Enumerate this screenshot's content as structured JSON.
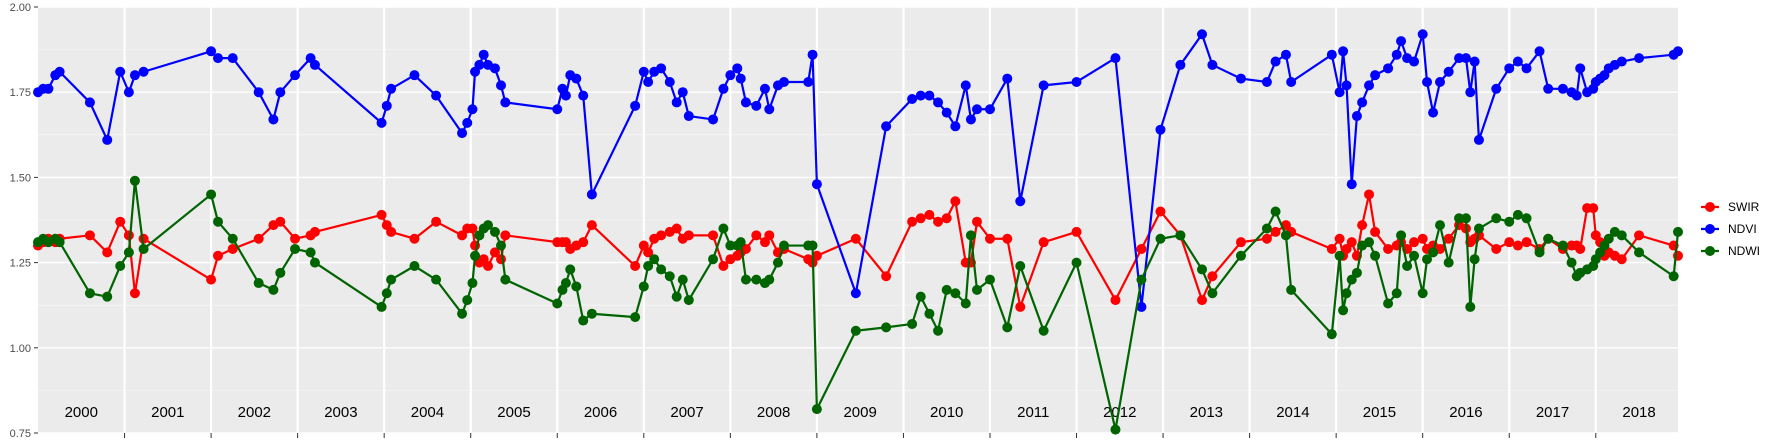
{
  "chart_data": {
    "type": "line",
    "title": "",
    "xlabel": "",
    "ylabel": "",
    "ylim": [
      0.75,
      2.0
    ],
    "xlim": [
      2000.0,
      2018.95
    ],
    "yticks": [
      0.75,
      1.0,
      1.25,
      1.5,
      1.75,
      2.0
    ],
    "ytick_labels": [
      "0.75",
      "1.00",
      "1.25",
      "1.50",
      "1.75",
      "2.00"
    ],
    "years": [
      "2000",
      "2001",
      "2002",
      "2003",
      "2004",
      "2005",
      "2006",
      "2007",
      "2008",
      "2009",
      "2010",
      "2011",
      "2012",
      "2013",
      "2014",
      "2015",
      "2016",
      "2017",
      "2018"
    ],
    "grid": true,
    "legend_position": "right",
    "series": [
      {
        "name": "SWIR",
        "color": "#ff0000",
        "x": [
          2000.0,
          2000.06,
          2000.12,
          2000.2,
          2000.25,
          2000.6,
          2000.8,
          2000.95,
          2001.05,
          2001.12,
          2001.22,
          2002.0,
          2002.08,
          2002.25,
          2002.55,
          2002.72,
          2002.8,
          2002.97,
          2003.15,
          2003.2,
          2003.97,
          2004.03,
          2004.08,
          2004.35,
          2004.6,
          2004.9,
          2004.96,
          2005.02,
          2005.05,
          2005.1,
          2005.15,
          2005.2,
          2005.28,
          2005.35,
          2005.4,
          2006.0,
          2006.06,
          2006.1,
          2006.15,
          2006.22,
          2006.3,
          2006.4,
          2006.9,
          2007.0,
          2007.05,
          2007.12,
          2007.2,
          2007.3,
          2007.38,
          2007.45,
          2007.52,
          2007.8,
          2007.92,
          2008.0,
          2008.08,
          2008.12,
          2008.18,
          2008.3,
          2008.4,
          2008.45,
          2008.55,
          2008.62,
          2008.9,
          2008.95,
          2009.0,
          2009.45,
          2009.8,
          2010.1,
          2010.2,
          2010.3,
          2010.4,
          2010.5,
          2010.6,
          2010.72,
          2010.78,
          2010.85,
          2011.0,
          2011.2,
          2011.35,
          2011.62,
          2012.0,
          2012.45,
          2012.75,
          2012.97,
          2013.2,
          2013.45,
          2013.57,
          2013.9,
          2014.2,
          2014.3,
          2014.42,
          2014.48,
          2014.95,
          2015.04,
          2015.08,
          2015.12,
          2015.18,
          2015.24,
          2015.3,
          2015.38,
          2015.45,
          2015.6,
          2015.7,
          2015.75,
          2015.82,
          2015.9,
          2016.0,
          2016.05,
          2016.12,
          2016.2,
          2016.3,
          2016.42,
          2016.5,
          2016.55,
          2016.6,
          2016.65,
          2016.85,
          2017.0,
          2017.1,
          2017.2,
          2017.35,
          2017.45,
          2017.62,
          2017.72,
          2017.78,
          2017.82,
          2017.9,
          2017.97,
          2018.0,
          2018.05,
          2018.1,
          2018.15,
          2018.22,
          2018.3,
          2018.5,
          2018.9,
          2018.95
        ],
        "values": [
          1.3,
          1.31,
          1.32,
          1.31,
          1.32,
          1.33,
          1.28,
          1.37,
          1.33,
          1.16,
          1.32,
          1.2,
          1.27,
          1.29,
          1.32,
          1.36,
          1.37,
          1.32,
          1.33,
          1.34,
          1.39,
          1.36,
          1.34,
          1.32,
          1.37,
          1.33,
          1.35,
          1.35,
          1.3,
          1.25,
          1.26,
          1.24,
          1.28,
          1.26,
          1.33,
          1.31,
          1.31,
          1.31,
          1.29,
          1.3,
          1.31,
          1.36,
          1.24,
          1.3,
          1.28,
          1.32,
          1.33,
          1.34,
          1.35,
          1.32,
          1.33,
          1.33,
          1.24,
          1.26,
          1.27,
          1.28,
          1.29,
          1.33,
          1.31,
          1.33,
          1.28,
          1.29,
          1.26,
          1.25,
          1.27,
          1.32,
          1.21,
          1.37,
          1.38,
          1.39,
          1.37,
          1.38,
          1.43,
          1.25,
          1.25,
          1.37,
          1.32,
          1.32,
          1.12,
          1.31,
          1.34,
          1.14,
          1.29,
          1.4,
          1.33,
          1.14,
          1.21,
          1.31,
          1.32,
          1.34,
          1.36,
          1.34,
          1.29,
          1.32,
          1.27,
          1.29,
          1.31,
          1.27,
          1.36,
          1.45,
          1.34,
          1.29,
          1.3,
          1.31,
          1.29,
          1.31,
          1.32,
          1.29,
          1.3,
          1.29,
          1.32,
          1.36,
          1.35,
          1.31,
          1.32,
          1.33,
          1.29,
          1.31,
          1.3,
          1.31,
          1.29,
          1.32,
          1.29,
          1.3,
          1.3,
          1.29,
          1.41,
          1.41,
          1.33,
          1.31,
          1.27,
          1.28,
          1.27,
          1.26,
          1.33,
          1.3,
          1.27
        ]
      },
      {
        "name": "NDVI",
        "color": "#0000ff",
        "x": [
          2000.0,
          2000.06,
          2000.12,
          2000.2,
          2000.25,
          2000.6,
          2000.8,
          2000.95,
          2001.05,
          2001.12,
          2001.22,
          2002.0,
          2002.08,
          2002.25,
          2002.55,
          2002.72,
          2002.8,
          2002.97,
          2003.15,
          2003.2,
          2003.97,
          2004.03,
          2004.08,
          2004.35,
          2004.6,
          2004.9,
          2004.96,
          2005.02,
          2005.05,
          2005.1,
          2005.15,
          2005.2,
          2005.28,
          2005.35,
          2005.4,
          2006.0,
          2006.06,
          2006.1,
          2006.15,
          2006.22,
          2006.3,
          2006.4,
          2006.9,
          2007.0,
          2007.05,
          2007.12,
          2007.2,
          2007.3,
          2007.38,
          2007.45,
          2007.52,
          2007.8,
          2007.92,
          2008.0,
          2008.08,
          2008.12,
          2008.18,
          2008.3,
          2008.4,
          2008.45,
          2008.55,
          2008.62,
          2008.9,
          2008.95,
          2009.0,
          2009.45,
          2009.8,
          2010.1,
          2010.2,
          2010.3,
          2010.4,
          2010.5,
          2010.6,
          2010.72,
          2010.78,
          2010.85,
          2011.0,
          2011.2,
          2011.35,
          2011.62,
          2012.0,
          2012.45,
          2012.75,
          2012.97,
          2013.2,
          2013.45,
          2013.57,
          2013.9,
          2014.2,
          2014.3,
          2014.42,
          2014.48,
          2014.95,
          2015.04,
          2015.08,
          2015.12,
          2015.18,
          2015.24,
          2015.3,
          2015.38,
          2015.45,
          2015.6,
          2015.7,
          2015.75,
          2015.82,
          2015.9,
          2016.0,
          2016.05,
          2016.12,
          2016.2,
          2016.3,
          2016.42,
          2016.5,
          2016.55,
          2016.6,
          2016.65,
          2016.85,
          2017.0,
          2017.1,
          2017.2,
          2017.35,
          2017.45,
          2017.62,
          2017.72,
          2017.78,
          2017.82,
          2017.9,
          2017.97,
          2018.0,
          2018.05,
          2018.1,
          2018.15,
          2018.22,
          2018.3,
          2018.5,
          2018.9,
          2018.95
        ],
        "values": [
          1.75,
          1.76,
          1.76,
          1.8,
          1.81,
          1.72,
          1.61,
          1.81,
          1.75,
          1.8,
          1.81,
          1.87,
          1.85,
          1.85,
          1.75,
          1.67,
          1.75,
          1.8,
          1.85,
          1.83,
          1.66,
          1.71,
          1.76,
          1.8,
          1.74,
          1.63,
          1.66,
          1.7,
          1.81,
          1.83,
          1.86,
          1.83,
          1.82,
          1.77,
          1.72,
          1.7,
          1.76,
          1.74,
          1.8,
          1.79,
          1.74,
          1.45,
          1.71,
          1.81,
          1.78,
          1.81,
          1.82,
          1.78,
          1.72,
          1.75,
          1.68,
          1.67,
          1.76,
          1.8,
          1.82,
          1.79,
          1.72,
          1.71,
          1.76,
          1.7,
          1.77,
          1.78,
          1.78,
          1.86,
          1.48,
          1.16,
          1.65,
          1.73,
          1.74,
          1.74,
          1.72,
          1.69,
          1.65,
          1.77,
          1.67,
          1.7,
          1.7,
          1.79,
          1.43,
          1.77,
          1.78,
          1.85,
          1.12,
          1.64,
          1.83,
          1.92,
          1.83,
          1.79,
          1.78,
          1.84,
          1.86,
          1.78,
          1.86,
          1.75,
          1.87,
          1.77,
          1.48,
          1.68,
          1.72,
          1.77,
          1.8,
          1.82,
          1.86,
          1.9,
          1.85,
          1.84,
          1.92,
          1.78,
          1.69,
          1.78,
          1.81,
          1.85,
          1.85,
          1.75,
          1.84,
          1.61,
          1.76,
          1.82,
          1.84,
          1.82,
          1.87,
          1.76,
          1.76,
          1.75,
          1.74,
          1.82,
          1.75,
          1.76,
          1.78,
          1.79,
          1.8,
          1.82,
          1.83,
          1.84,
          1.85,
          1.86,
          1.87
        ]
      },
      {
        "name": "NDWI",
        "color": "#006400",
        "x": [
          2000.0,
          2000.06,
          2000.12,
          2000.2,
          2000.25,
          2000.6,
          2000.8,
          2000.95,
          2001.05,
          2001.12,
          2001.22,
          2002.0,
          2002.08,
          2002.25,
          2002.55,
          2002.72,
          2002.8,
          2002.97,
          2003.15,
          2003.2,
          2003.97,
          2004.03,
          2004.08,
          2004.35,
          2004.6,
          2004.9,
          2004.96,
          2005.02,
          2005.05,
          2005.1,
          2005.15,
          2005.2,
          2005.28,
          2005.35,
          2005.4,
          2006.0,
          2006.06,
          2006.1,
          2006.15,
          2006.22,
          2006.3,
          2006.4,
          2006.9,
          2007.0,
          2007.05,
          2007.12,
          2007.2,
          2007.3,
          2007.38,
          2007.45,
          2007.52,
          2007.8,
          2007.92,
          2008.0,
          2008.08,
          2008.12,
          2008.18,
          2008.3,
          2008.4,
          2008.45,
          2008.55,
          2008.62,
          2008.9,
          2008.95,
          2009.0,
          2009.45,
          2009.8,
          2010.1,
          2010.2,
          2010.3,
          2010.4,
          2010.5,
          2010.6,
          2010.72,
          2010.78,
          2010.85,
          2011.0,
          2011.2,
          2011.35,
          2011.62,
          2012.0,
          2012.45,
          2012.75,
          2012.97,
          2013.2,
          2013.45,
          2013.57,
          2013.9,
          2014.2,
          2014.3,
          2014.42,
          2014.48,
          2014.95,
          2015.04,
          2015.08,
          2015.12,
          2015.18,
          2015.24,
          2015.3,
          2015.38,
          2015.45,
          2015.6,
          2015.7,
          2015.75,
          2015.82,
          2015.9,
          2016.0,
          2016.05,
          2016.12,
          2016.2,
          2016.3,
          2016.42,
          2016.5,
          2016.55,
          2016.6,
          2016.65,
          2016.85,
          2017.0,
          2017.1,
          2017.2,
          2017.35,
          2017.45,
          2017.62,
          2017.72,
          2017.78,
          2017.82,
          2017.9,
          2017.97,
          2018.0,
          2018.05,
          2018.1,
          2018.15,
          2018.22,
          2018.3,
          2018.5,
          2018.9,
          2018.95
        ],
        "values": [
          1.31,
          1.32,
          1.31,
          1.32,
          1.31,
          1.16,
          1.15,
          1.24,
          1.28,
          1.49,
          1.29,
          1.45,
          1.37,
          1.32,
          1.19,
          1.17,
          1.22,
          1.29,
          1.28,
          1.25,
          1.12,
          1.16,
          1.2,
          1.24,
          1.2,
          1.1,
          1.14,
          1.19,
          1.27,
          1.33,
          1.35,
          1.36,
          1.34,
          1.3,
          1.2,
          1.13,
          1.17,
          1.19,
          1.23,
          1.18,
          1.08,
          1.1,
          1.09,
          1.18,
          1.24,
          1.26,
          1.23,
          1.21,
          1.15,
          1.2,
          1.14,
          1.26,
          1.35,
          1.3,
          1.3,
          1.31,
          1.2,
          1.2,
          1.19,
          1.2,
          1.25,
          1.3,
          1.3,
          1.3,
          0.82,
          1.05,
          1.06,
          1.07,
          1.15,
          1.1,
          1.05,
          1.17,
          1.16,
          1.13,
          1.33,
          1.17,
          1.2,
          1.06,
          1.24,
          1.05,
          1.25,
          0.76,
          1.2,
          1.32,
          1.33,
          1.23,
          1.16,
          1.27,
          1.35,
          1.4,
          1.33,
          1.17,
          1.04,
          1.27,
          1.11,
          1.16,
          1.2,
          1.22,
          1.3,
          1.31,
          1.27,
          1.13,
          1.16,
          1.33,
          1.24,
          1.27,
          1.16,
          1.26,
          1.28,
          1.36,
          1.25,
          1.38,
          1.38,
          1.12,
          1.26,
          1.35,
          1.38,
          1.37,
          1.39,
          1.38,
          1.28,
          1.32,
          1.3,
          1.25,
          1.21,
          1.22,
          1.23,
          1.24,
          1.26,
          1.28,
          1.3,
          1.32,
          1.34,
          1.33,
          1.28,
          1.21,
          1.34
        ]
      }
    ]
  }
}
